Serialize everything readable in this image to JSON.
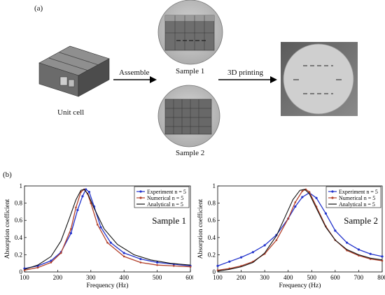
{
  "figure": {
    "panel_a_label": "(a)",
    "panel_b_label": "(b)",
    "unit_cell_label": "Unit cell",
    "assemble_label": "Assemble",
    "sample1_label": "Sample 1",
    "sample2_label": "Sample 2",
    "printing_label": "3D printing"
  },
  "colors": {
    "experiment": "#2233cc",
    "numerical": "#b2402a",
    "analytical": "#111111"
  },
  "chart_data": [
    {
      "type": "line",
      "annotation": "Sample 1",
      "xlabel": "Frequency (Hz)",
      "ylabel": "Absorption coefficient",
      "xlim": [
        100,
        600
      ],
      "ylim": [
        0,
        1
      ],
      "xticks": [
        100,
        200,
        300,
        400,
        500,
        600
      ],
      "yticks": [
        0,
        0.2,
        0.4,
        0.6,
        0.8,
        1
      ],
      "legend_position": "top-right",
      "series": [
        {
          "name": "Experiment n = 5",
          "x": [
            100,
            140,
            180,
            210,
            240,
            260,
            275,
            285,
            295,
            310,
            330,
            360,
            400,
            450,
            500,
            550,
            600
          ],
          "y": [
            0.04,
            0.07,
            0.13,
            0.23,
            0.45,
            0.72,
            0.88,
            0.96,
            0.93,
            0.76,
            0.52,
            0.34,
            0.22,
            0.15,
            0.11,
            0.09,
            0.07
          ]
        },
        {
          "name": "Numerical n = 5",
          "x": [
            100,
            140,
            180,
            210,
            240,
            255,
            270,
            280,
            290,
            300,
            320,
            350,
            400,
            450,
            500,
            550,
            600
          ],
          "y": [
            0.02,
            0.05,
            0.11,
            0.22,
            0.5,
            0.75,
            0.93,
            0.96,
            0.91,
            0.8,
            0.55,
            0.34,
            0.18,
            0.11,
            0.08,
            0.07,
            0.06
          ]
        },
        {
          "name": "Analytical n = 5",
          "x": [
            100,
            140,
            180,
            210,
            235,
            255,
            270,
            280,
            292,
            310,
            340,
            380,
            430,
            480,
            540,
            600
          ],
          "y": [
            0.03,
            0.08,
            0.18,
            0.36,
            0.62,
            0.84,
            0.95,
            0.96,
            0.9,
            0.74,
            0.5,
            0.32,
            0.2,
            0.14,
            0.1,
            0.08
          ]
        }
      ]
    },
    {
      "type": "line",
      "annotation": "Sample 2",
      "xlabel": "Frequency (Hz)",
      "ylabel": "Absorption coefficient",
      "xlim": [
        100,
        800
      ],
      "ylim": [
        0,
        1
      ],
      "xticks": [
        100,
        200,
        300,
        400,
        500,
        600,
        700,
        800
      ],
      "yticks": [
        0,
        0.2,
        0.4,
        0.6,
        0.8,
        1
      ],
      "legend_position": "top-right",
      "series": [
        {
          "name": "Experiment n = 5",
          "x": [
            100,
            150,
            200,
            250,
            300,
            350,
            400,
            430,
            460,
            490,
            520,
            560,
            600,
            650,
            700,
            750,
            800
          ],
          "y": [
            0.07,
            0.12,
            0.17,
            0.23,
            0.31,
            0.43,
            0.62,
            0.76,
            0.87,
            0.92,
            0.86,
            0.68,
            0.48,
            0.34,
            0.26,
            0.21,
            0.18
          ]
        },
        {
          "name": "Numerical n = 5",
          "x": [
            100,
            150,
            200,
            250,
            300,
            350,
            400,
            430,
            460,
            475,
            490,
            520,
            560,
            600,
            650,
            700,
            750,
            800
          ],
          "y": [
            0.02,
            0.04,
            0.07,
            0.12,
            0.21,
            0.37,
            0.62,
            0.81,
            0.94,
            0.96,
            0.93,
            0.76,
            0.53,
            0.37,
            0.25,
            0.19,
            0.15,
            0.13
          ]
        },
        {
          "name": "Analytical n = 5",
          "x": [
            100,
            150,
            200,
            250,
            300,
            350,
            390,
            420,
            450,
            470,
            490,
            520,
            560,
            600,
            650,
            700,
            750,
            800
          ],
          "y": [
            0.01,
            0.03,
            0.06,
            0.11,
            0.22,
            0.42,
            0.66,
            0.84,
            0.95,
            0.96,
            0.91,
            0.74,
            0.52,
            0.37,
            0.26,
            0.2,
            0.16,
            0.14
          ]
        }
      ]
    }
  ]
}
